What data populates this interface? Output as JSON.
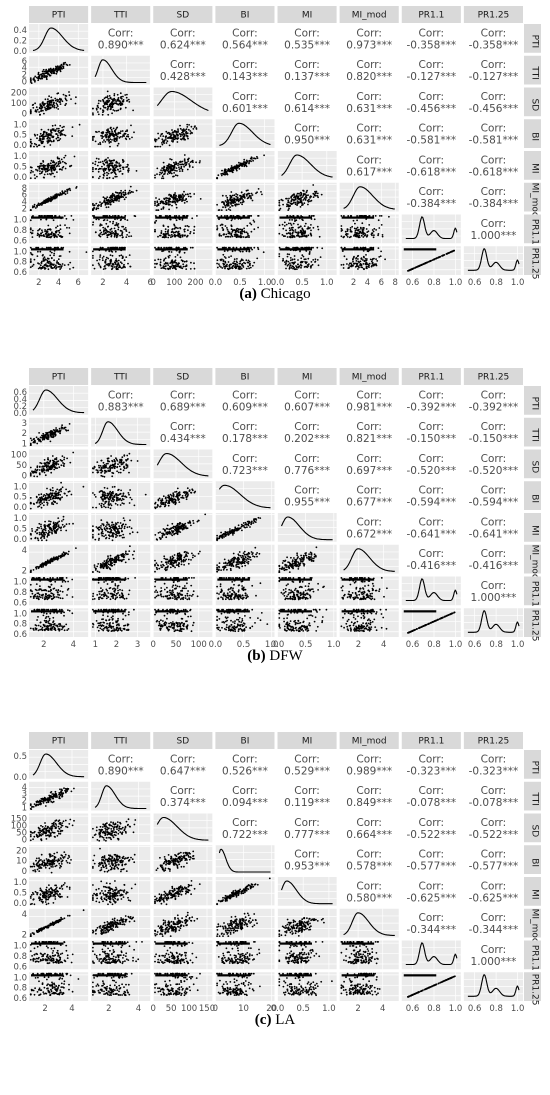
{
  "chart_data": [
    {
      "type": "scatter",
      "subtitle": {
        "label": "(a)",
        "city": "Chicago"
      },
      "variables": [
        "PTI",
        "TTI",
        "SD",
        "BI",
        "MI",
        "MI_mod",
        "PR1.1",
        "PR1.25"
      ],
      "col_ticks": [
        [
          "2",
          "4",
          "6"
        ],
        [
          "2",
          "4",
          "6"
        ],
        [
          "0",
          "100",
          "200"
        ],
        [
          "0.0",
          "0.5",
          "1.0"
        ],
        [
          "0.0",
          "0.5",
          "1.0"
        ],
        [
          "2",
          "4",
          "6",
          "8"
        ],
        [
          "0.6",
          "0.8",
          "1.0"
        ],
        [
          "0.6",
          "0.8",
          "1.0"
        ]
      ],
      "col_tick_values": [
        [
          2,
          4,
          6
        ],
        [
          2,
          4,
          6
        ],
        [
          0,
          100,
          200
        ],
        [
          0,
          0.5,
          1
        ],
        [
          0,
          0.5,
          1
        ],
        [
          2,
          4,
          6,
          8
        ],
        [
          0.6,
          0.8,
          1
        ],
        [
          0.6,
          0.8,
          1
        ]
      ],
      "row_ticks": [
        [
          "0.0",
          "0.2",
          "0.4"
        ],
        [
          "0",
          "2",
          "4",
          "6"
        ],
        [
          "0",
          "100",
          "200"
        ],
        [
          "0.0",
          "0.5",
          "1.0"
        ],
        [
          "0.0",
          "0.5",
          "1.0"
        ],
        [
          "2",
          "4",
          "6",
          "8"
        ],
        [
          "0.6",
          "0.8",
          "1.0"
        ],
        [
          "0.6",
          "0.8",
          "1.0"
        ]
      ],
      "row_tick_values": [
        [
          0,
          0.2,
          0.4
        ],
        [
          0,
          2,
          4,
          6
        ],
        [
          0,
          100,
          200
        ],
        [
          0,
          0.5,
          1
        ],
        [
          0,
          0.5,
          1
        ],
        [
          2,
          4,
          6,
          8
        ],
        [
          0.6,
          0.8,
          1
        ],
        [
          0.6,
          0.8,
          1
        ]
      ],
      "ranges": [
        [
          1,
          7
        ],
        [
          1,
          6
        ],
        [
          0,
          280
        ],
        [
          0,
          1.2
        ],
        [
          0,
          1.2
        ],
        [
          0,
          8.5
        ],
        [
          0.5,
          1.05
        ],
        [
          0.5,
          1.05
        ]
      ],
      "density_ylim": [
        0,
        0.6
      ],
      "correlations": [
        [
          "PTI",
          "TTI",
          "0.890***"
        ],
        [
          "PTI",
          "SD",
          "0.624***"
        ],
        [
          "PTI",
          "BI",
          "0.564***"
        ],
        [
          "PTI",
          "MI",
          "0.535***"
        ],
        [
          "PTI",
          "MI_mod",
          "0.973***"
        ],
        [
          "PTI",
          "PR1.1",
          "-0.358***"
        ],
        [
          "PTI",
          "PR1.25",
          "-0.358***"
        ],
        [
          "TTI",
          "SD",
          "0.428***"
        ],
        [
          "TTI",
          "BI",
          "0.143***"
        ],
        [
          "TTI",
          "MI",
          "0.137***"
        ],
        [
          "TTI",
          "MI_mod",
          "0.820***"
        ],
        [
          "TTI",
          "PR1.1",
          "-0.127***"
        ],
        [
          "TTI",
          "PR1.25",
          "-0.127***"
        ],
        [
          "SD",
          "BI",
          "0.601***"
        ],
        [
          "SD",
          "MI",
          "0.614***"
        ],
        [
          "SD",
          "MI_mod",
          "0.631***"
        ],
        [
          "SD",
          "PR1.1",
          "-0.456***"
        ],
        [
          "SD",
          "PR1.25",
          "-0.456***"
        ],
        [
          "BI",
          "MI",
          "0.950***"
        ],
        [
          "BI",
          "MI_mod",
          "0.631***"
        ],
        [
          "BI",
          "PR1.1",
          "-0.581***"
        ],
        [
          "BI",
          "PR1.25",
          "-0.581***"
        ],
        [
          "MI",
          "MI_mod",
          "0.617***"
        ],
        [
          "MI",
          "PR1.1",
          "-0.618***"
        ],
        [
          "MI",
          "PR1.25",
          "-0.618***"
        ],
        [
          "MI_mod",
          "PR1.1",
          "-0.384***"
        ],
        [
          "MI_mod",
          "PR1.25",
          "-0.384***"
        ],
        [
          "PR1.1",
          "PR1.25",
          "1.000***"
        ]
      ],
      "density_shapes": [
        {
          "peak": 0.35,
          "width": 0.12
        },
        {
          "peak": 0.15,
          "width": 0.09
        },
        {
          "peak": 0.28,
          "width": 0.2
        },
        {
          "peak": 0.38,
          "width": 0.14
        },
        {
          "peak": 0.3,
          "width": 0.14
        },
        {
          "peak": 0.32,
          "width": 0.13
        },
        {
          "peak": 0.32,
          "width": 0.08
        },
        {
          "peak": 0.32,
          "width": 0.08
        }
      ]
    },
    {
      "type": "scatter",
      "subtitle": {
        "label": "(b)",
        "city": "DFW"
      },
      "variables": [
        "PTI",
        "TTI",
        "SD",
        "BI",
        "MI",
        "MI_mod",
        "PR1.1",
        "PR1.25"
      ],
      "col_ticks": [
        [
          "2",
          "4"
        ],
        [
          "1",
          "2",
          "3"
        ],
        [
          "0",
          "50",
          "100"
        ],
        [
          "0.0",
          "0.5",
          "1.0"
        ],
        [
          "0.0",
          "0.5",
          "1.0"
        ],
        [
          "2",
          "4"
        ],
        [
          "0.6",
          "0.8",
          "1.0"
        ],
        [
          "0.6",
          "0.8",
          "1.0"
        ]
      ],
      "col_tick_values": [
        [
          2,
          4
        ],
        [
          1,
          2,
          3
        ],
        [
          0,
          50,
          100
        ],
        [
          0,
          0.5,
          1
        ],
        [
          0,
          0.5,
          1
        ],
        [
          2,
          4
        ],
        [
          0.6,
          0.8,
          1
        ],
        [
          0.6,
          0.8,
          1
        ]
      ],
      "row_ticks": [
        [
          "0.0",
          "0.2",
          "0.4",
          "0.6"
        ],
        [
          "1",
          "2",
          "3"
        ],
        [
          "0",
          "50",
          "100"
        ],
        [
          "0.0",
          "0.5",
          "1.0"
        ],
        [
          "0.0",
          "0.5",
          "1.0"
        ],
        [
          "2",
          "4"
        ],
        [
          "0.6",
          "0.8",
          "1.0"
        ],
        [
          "0.6",
          "0.8",
          "1.0"
        ]
      ],
      "row_tick_values": [
        [
          0,
          0.2,
          0.4,
          0.6
        ],
        [
          1,
          2,
          3
        ],
        [
          0,
          50,
          100
        ],
        [
          0,
          0.5,
          1
        ],
        [
          0,
          0.5,
          1
        ],
        [
          2,
          4
        ],
        [
          0.6,
          0.8,
          1
        ],
        [
          0.6,
          0.8,
          1
        ]
      ],
      "ranges": [
        [
          1,
          5
        ],
        [
          0.8,
          3.6
        ],
        [
          0,
          130
        ],
        [
          0,
          1.05
        ],
        [
          0,
          1.05
        ],
        [
          0.5,
          5.2
        ],
        [
          0.5,
          1.05
        ],
        [
          0.5,
          1.05
        ]
      ],
      "density_ylim": [
        0,
        0.7
      ],
      "correlations": [
        [
          "PTI",
          "TTI",
          "0.883***"
        ],
        [
          "PTI",
          "SD",
          "0.689***"
        ],
        [
          "PTI",
          "BI",
          "0.609***"
        ],
        [
          "PTI",
          "MI",
          "0.607***"
        ],
        [
          "PTI",
          "MI_mod",
          "0.981***"
        ],
        [
          "PTI",
          "PR1.1",
          "-0.392***"
        ],
        [
          "PTI",
          "PR1.25",
          "-0.392***"
        ],
        [
          "TTI",
          "SD",
          "0.434***"
        ],
        [
          "TTI",
          "BI",
          "0.178***"
        ],
        [
          "TTI",
          "MI",
          "0.202***"
        ],
        [
          "TTI",
          "MI_mod",
          "0.821***"
        ],
        [
          "TTI",
          "PR1.1",
          "-0.150***"
        ],
        [
          "TTI",
          "PR1.25",
          "-0.150***"
        ],
        [
          "SD",
          "BI",
          "0.723***"
        ],
        [
          "SD",
          "MI",
          "0.776***"
        ],
        [
          "SD",
          "MI_mod",
          "0.697***"
        ],
        [
          "SD",
          "PR1.1",
          "-0.520***"
        ],
        [
          "SD",
          "PR1.25",
          "-0.520***"
        ],
        [
          "BI",
          "MI",
          "0.955***"
        ],
        [
          "BI",
          "MI_mod",
          "0.677***"
        ],
        [
          "BI",
          "PR1.1",
          "-0.594***"
        ],
        [
          "BI",
          "PR1.25",
          "-0.594***"
        ],
        [
          "MI",
          "MI_mod",
          "0.672***"
        ],
        [
          "MI",
          "PR1.1",
          "-0.641***"
        ],
        [
          "MI",
          "PR1.25",
          "-0.641***"
        ],
        [
          "MI_mod",
          "PR1.1",
          "-0.416***"
        ],
        [
          "MI_mod",
          "PR1.25",
          "-0.416***"
        ],
        [
          "PR1.1",
          "PR1.25",
          "1.000***"
        ]
      ],
      "density_shapes": [
        {
          "peak": 0.25,
          "width": 0.12
        },
        {
          "peak": 0.25,
          "width": 0.1
        },
        {
          "peak": 0.18,
          "width": 0.15
        },
        {
          "peak": 0.1,
          "width": 0.16
        },
        {
          "peak": 0.12,
          "width": 0.12
        },
        {
          "peak": 0.28,
          "width": 0.12
        },
        {
          "peak": 0.3,
          "width": 0.08
        },
        {
          "peak": 0.3,
          "width": 0.08
        }
      ]
    },
    {
      "type": "scatter",
      "subtitle": {
        "label": "(c)",
        "city": "LA"
      },
      "variables": [
        "PTI",
        "TTI",
        "SD",
        "BI",
        "MI",
        "MI_mod",
        "PR1.1",
        "PR1.25"
      ],
      "col_ticks": [
        [
          "2",
          "4"
        ],
        [
          "2",
          "4"
        ],
        [
          "0",
          "50",
          "100",
          "150"
        ],
        [
          "0",
          "10",
          "20"
        ],
        [
          "0.0",
          "0.5",
          "1.0"
        ],
        [
          "2",
          "4"
        ],
        [
          "0.6",
          "0.8",
          "1.0"
        ],
        [
          "0.6",
          "0.8",
          "1.0"
        ]
      ],
      "col_tick_values": [
        [
          2,
          4
        ],
        [
          2,
          4
        ],
        [
          0,
          50,
          100,
          150
        ],
        [
          0,
          10,
          20
        ],
        [
          0,
          0.5,
          1
        ],
        [
          2,
          4
        ],
        [
          0.6,
          0.8,
          1
        ],
        [
          0.6,
          0.8,
          1
        ]
      ],
      "row_ticks": [
        [
          "0.0",
          "0.5"
        ],
        [
          "1",
          "2",
          "3",
          "4"
        ],
        [
          "0",
          "50",
          "100",
          "150"
        ],
        [
          "0",
          "10",
          "20"
        ],
        [
          "0.0",
          "0.5",
          "1.0"
        ],
        [
          "2",
          "4"
        ],
        [
          "0.6",
          "0.8",
          "1.0"
        ],
        [
          "0.6",
          "0.8",
          "1.0"
        ]
      ],
      "row_tick_values": [
        [
          0,
          0.5
        ],
        [
          1,
          2,
          3,
          4
        ],
        [
          0,
          50,
          100,
          150
        ],
        [
          0,
          10,
          20
        ],
        [
          0,
          0.5,
          1
        ],
        [
          2,
          4
        ],
        [
          0.6,
          0.8,
          1
        ],
        [
          0.6,
          0.8,
          1
        ]
      ],
      "ranges": [
        [
          0.8,
          5.2
        ],
        [
          0.8,
          4.8
        ],
        [
          0,
          165
        ],
        [
          0,
          21
        ],
        [
          0,
          1.15
        ],
        [
          0.5,
          5.3
        ],
        [
          0.5,
          1.05
        ],
        [
          0.5,
          1.05
        ]
      ],
      "density_ylim": [
        0,
        0.9
      ],
      "correlations": [
        [
          "PTI",
          "TTI",
          "0.890***"
        ],
        [
          "PTI",
          "SD",
          "0.647***"
        ],
        [
          "PTI",
          "BI",
          "0.526***"
        ],
        [
          "PTI",
          "MI",
          "0.529***"
        ],
        [
          "PTI",
          "MI_mod",
          "0.989***"
        ],
        [
          "PTI",
          "PR1.1",
          "-0.323***"
        ],
        [
          "PTI",
          "PR1.25",
          "-0.323***"
        ],
        [
          "TTI",
          "SD",
          "0.374***"
        ],
        [
          "TTI",
          "BI",
          "0.094***"
        ],
        [
          "TTI",
          "MI",
          "0.119***"
        ],
        [
          "TTI",
          "MI_mod",
          "0.849***"
        ],
        [
          "TTI",
          "PR1.1",
          "-0.078***"
        ],
        [
          "TTI",
          "PR1.25",
          "-0.078***"
        ],
        [
          "SD",
          "BI",
          "0.722***"
        ],
        [
          "SD",
          "MI",
          "0.777***"
        ],
        [
          "SD",
          "MI_mod",
          "0.664***"
        ],
        [
          "SD",
          "PR1.1",
          "-0.522***"
        ],
        [
          "SD",
          "PR1.25",
          "-0.522***"
        ],
        [
          "BI",
          "MI",
          "0.953***"
        ],
        [
          "BI",
          "MI_mod",
          "0.578***"
        ],
        [
          "BI",
          "PR1.1",
          "-0.577***"
        ],
        [
          "BI",
          "PR1.25",
          "-0.577***"
        ],
        [
          "MI",
          "MI_mod",
          "0.580***"
        ],
        [
          "MI",
          "PR1.1",
          "-0.625***"
        ],
        [
          "MI",
          "PR1.25",
          "-0.625***"
        ],
        [
          "MI_mod",
          "PR1.1",
          "-0.344***"
        ],
        [
          "MI_mod",
          "PR1.25",
          "-0.344***"
        ],
        [
          "PR1.1",
          "PR1.25",
          "1.000***"
        ]
      ],
      "density_shapes": [
        {
          "peak": 0.25,
          "width": 0.11
        },
        {
          "peak": 0.22,
          "width": 0.09
        },
        {
          "peak": 0.12,
          "width": 0.14
        },
        {
          "peak": 0.03,
          "width": 0.05
        },
        {
          "peak": 0.1,
          "width": 0.1
        },
        {
          "peak": 0.28,
          "width": 0.11
        },
        {
          "peak": 0.3,
          "width": 0.08
        },
        {
          "peak": 0.3,
          "width": 0.08
        }
      ]
    }
  ],
  "corr_label": "Corr:",
  "colors": {
    "panel_bg": "#ebebeb",
    "strip_bg": "#d9d9d9",
    "grid": "#ffffff",
    "points": "#000000",
    "corr_text": "#4d4d4d"
  }
}
